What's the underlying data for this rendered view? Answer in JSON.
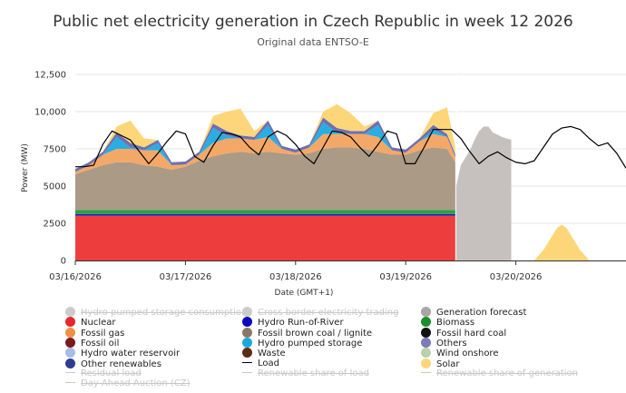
{
  "chart_data": {
    "type": "area",
    "title": "Public net electricity generation in Czech Republic in week 12 2026",
    "subtitle": "Original data ENTSO-E",
    "xlabel": "Date (GMT+1)",
    "ylabel": "Power (MW)",
    "ylim": [
      0,
      12500
    ],
    "yticks": [
      "0",
      "2500",
      "5000",
      "7500",
      "10,000",
      "12,500"
    ],
    "xlim": [
      0,
      120
    ],
    "x_unit": "hours since 03/16/2026 00:00 (GMT+1)",
    "xticks": [
      {
        "x": 0,
        "label": "03/16/2026"
      },
      {
        "x": 24,
        "label": "03/17/2026"
      },
      {
        "x": 48,
        "label": "03/18/2026"
      },
      {
        "x": 72,
        "label": "03/19/2026"
      },
      {
        "x": 96,
        "label": "03/20/2026"
      }
    ],
    "actuals_end_hour": 83,
    "x": [
      0,
      3,
      6,
      9,
      12,
      15,
      18,
      21,
      24,
      27,
      30,
      33,
      36,
      39,
      42,
      45,
      48,
      51,
      54,
      57,
      60,
      63,
      66,
      69,
      72,
      75,
      78,
      81,
      83
    ],
    "series": [
      {
        "name": "Nuclear",
        "color": "#ee3d3d",
        "values": [
          3000,
          3000,
          3000,
          3000,
          3000,
          3000,
          3000,
          3000,
          3000,
          3000,
          3000,
          3000,
          3000,
          3000,
          3000,
          3000,
          3000,
          3000,
          3000,
          3000,
          3000,
          3000,
          3000,
          3000,
          3000,
          3000,
          3000,
          3000,
          3000
        ]
      },
      {
        "name": "Hydro Run-of-River",
        "color": "#1e1ebf",
        "values": [
          120,
          120,
          120,
          120,
          120,
          120,
          120,
          120,
          120,
          120,
          120,
          120,
          120,
          120,
          120,
          120,
          120,
          120,
          120,
          120,
          120,
          120,
          120,
          120,
          120,
          120,
          120,
          120,
          120
        ]
      },
      {
        "name": "Biomass",
        "color": "#2e9e48",
        "values": [
          280,
          280,
          280,
          280,
          280,
          280,
          280,
          280,
          280,
          280,
          280,
          280,
          280,
          280,
          280,
          280,
          280,
          280,
          280,
          280,
          280,
          280,
          280,
          280,
          280,
          280,
          280,
          280,
          280
        ]
      },
      {
        "name": "Fossil brown coal / lignite",
        "color": "#ab9a85",
        "values": [
          2400,
          2700,
          3000,
          3200,
          3200,
          3000,
          2900,
          2700,
          2900,
          3300,
          3600,
          3800,
          3900,
          3800,
          3900,
          3800,
          3700,
          3800,
          4100,
          4200,
          4200,
          4100,
          3900,
          3700,
          3700,
          4000,
          4200,
          4100,
          3100
        ]
      },
      {
        "name": "Fossil gas",
        "color": "#f4a867",
        "values": [
          150,
          300,
          700,
          900,
          900,
          1000,
          1100,
          300,
          150,
          400,
          900,
          1000,
          900,
          900,
          1000,
          300,
          150,
          400,
          1000,
          900,
          900,
          1000,
          1000,
          300,
          150,
          600,
          900,
          800,
          300
        ]
      },
      {
        "name": "Hydro pumped storage",
        "color": "#27aee3",
        "values": [
          0,
          0,
          0,
          800,
          100,
          0,
          500,
          0,
          0,
          0,
          1000,
          200,
          0,
          0,
          800,
          0,
          0,
          0,
          800,
          100,
          0,
          0,
          800,
          0,
          0,
          0,
          300,
          0,
          0
        ]
      },
      {
        "name": "Others",
        "color": "#6f6fb0",
        "values": [
          200,
          200,
          200,
          300,
          300,
          200,
          200,
          200,
          200,
          200,
          300,
          300,
          200,
          200,
          300,
          200,
          200,
          200,
          300,
          300,
          200,
          200,
          300,
          200,
          200,
          200,
          300,
          200,
          200
        ]
      },
      {
        "name": "Solar",
        "color": "#fdd67a",
        "values": [
          0,
          0,
          0,
          400,
          1500,
          600,
          0,
          0,
          0,
          0,
          500,
          1300,
          1800,
          400,
          0,
          0,
          0,
          0,
          400,
          1600,
          1200,
          300,
          0,
          0,
          0,
          0,
          800,
          1800,
          300
        ]
      }
    ],
    "generation_forecast": {
      "name": "Generation forecast",
      "color": "#c6c1be",
      "x": [
        83,
        84,
        86,
        87,
        88,
        89,
        90,
        91,
        93,
        95
      ],
      "values": [
        5000,
        6400,
        7400,
        8100,
        8700,
        9000,
        9000,
        8600,
        8300,
        8100
      ]
    },
    "solar_forecast": {
      "x": [
        100,
        102,
        104,
        105,
        106,
        107,
        108,
        110,
        112
      ],
      "values": [
        0,
        700,
        1700,
        2200,
        2400,
        2200,
        1700,
        700,
        0
      ]
    },
    "load": {
      "name": "Load",
      "color": "#000000",
      "x": [
        0,
        2,
        4,
        6,
        8,
        10,
        12,
        14,
        16,
        18,
        20,
        22,
        24,
        26,
        28,
        30,
        32,
        34,
        36,
        38,
        40,
        42,
        44,
        46,
        48,
        50,
        52,
        54,
        56,
        58,
        60,
        62,
        64,
        66,
        68,
        70,
        72,
        74,
        76,
        78,
        80,
        82,
        84,
        86,
        88,
        90,
        92,
        94,
        96,
        98,
        100,
        102,
        104,
        106,
        108,
        110,
        112,
        114,
        116,
        118,
        120
      ],
      "values": [
        6300,
        6300,
        6400,
        7800,
        8700,
        8400,
        8100,
        7300,
        6500,
        7200,
        8000,
        8700,
        8500,
        7000,
        6600,
        7700,
        8600,
        8500,
        8300,
        7600,
        7100,
        8300,
        8700,
        8400,
        7800,
        7000,
        6500,
        7600,
        8700,
        8600,
        8300,
        7600,
        7000,
        7800,
        8700,
        8500,
        6500,
        6500,
        7600,
        8800,
        8800,
        8800,
        8200,
        7300,
        6500,
        7000,
        7300,
        6900,
        6600,
        6500,
        6700,
        7600,
        8500,
        8900,
        9000,
        8800,
        8200,
        7700,
        7900,
        7200,
        6200
      ]
    }
  },
  "legend": [
    {
      "label": "Hydro pumped storage consumption",
      "color": "#cccccc",
      "icon": "circle",
      "hidden": true
    },
    {
      "label": "Cross border electricity trading",
      "color": "#cccccc",
      "icon": "circle",
      "hidden": true
    },
    {
      "label": "Generation forecast",
      "color": "#a9a5a2",
      "icon": "circle",
      "hidden": false
    },
    {
      "label": "Nuclear",
      "color": "#e8262b",
      "icon": "circle",
      "hidden": false
    },
    {
      "label": "Hydro Run-of-River",
      "color": "#0a0ab8",
      "icon": "circle",
      "hidden": false
    },
    {
      "label": "Biomass",
      "color": "#1b8e2f",
      "icon": "circle",
      "hidden": false
    },
    {
      "label": "Fossil gas",
      "color": "#f28f45",
      "icon": "circle",
      "hidden": false
    },
    {
      "label": "Fossil brown coal / lignite",
      "color": "#8b7766",
      "icon": "circle",
      "hidden": false
    },
    {
      "label": "Fossil hard coal",
      "color": "#111111",
      "icon": "circle",
      "hidden": false
    },
    {
      "label": "Fossil oil",
      "color": "#7a1b1b",
      "icon": "circle",
      "hidden": false
    },
    {
      "label": "Hydro pumped storage",
      "color": "#1ba8e0",
      "icon": "circle",
      "hidden": false
    },
    {
      "label": "Others",
      "color": "#7b7bb8",
      "icon": "circle",
      "hidden": false
    },
    {
      "label": "Hydro water reservoir",
      "color": "#a7bce6",
      "icon": "circle",
      "hidden": false
    },
    {
      "label": "Waste",
      "color": "#5a2d12",
      "icon": "circle",
      "hidden": false
    },
    {
      "label": "Wind onshore",
      "color": "#b7d2ad",
      "icon": "circle",
      "hidden": false
    },
    {
      "label": "Other renewables",
      "color": "#2e3c94",
      "icon": "circle",
      "hidden": false
    },
    {
      "label": "Load",
      "color": "#000000",
      "icon": "line",
      "hidden": false
    },
    {
      "label": "Solar",
      "color": "#fdd67a",
      "icon": "circle",
      "hidden": false
    },
    {
      "label": "Residual load",
      "color": "#cccccc",
      "icon": "line",
      "hidden": true
    },
    {
      "label": "Renewable share of load",
      "color": "#cccccc",
      "icon": "line",
      "hidden": true
    },
    {
      "label": "Renewable share of generation",
      "color": "#cccccc",
      "icon": "line",
      "hidden": true
    },
    {
      "label": "Day Ahead Auction (CZ)",
      "color": "#cccccc",
      "icon": "line",
      "hidden": true
    }
  ]
}
